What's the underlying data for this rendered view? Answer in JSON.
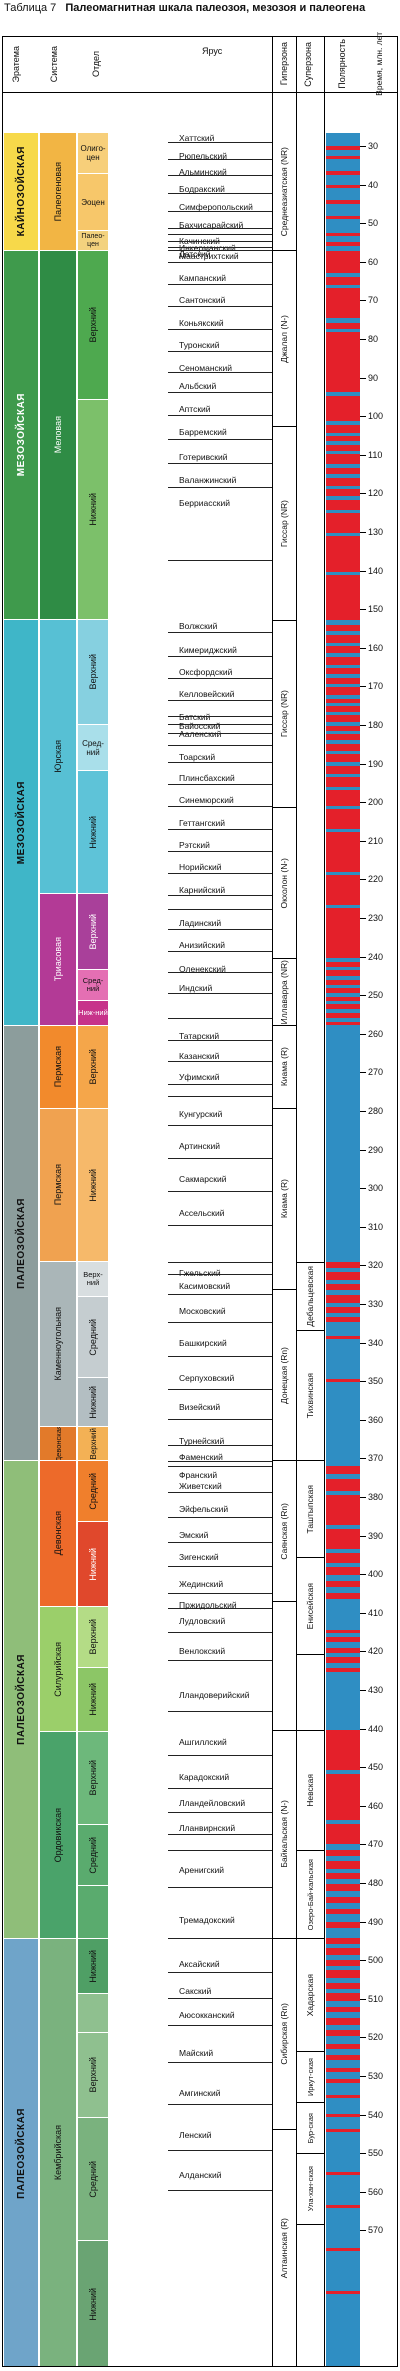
{
  "table": {
    "number": "Таблица 7",
    "title": "Палеомагнитная шкала палеозоя, мезозоя и палеогена"
  },
  "headers": {
    "eratema": "Эратема",
    "sistema": "Система",
    "otdel": "Отдел",
    "yarus": "Ярус",
    "giperzona": "Гиперзона",
    "superzona": "Суперзона",
    "polarnost": "Полярность",
    "vremya": "Время, млн. лет"
  },
  "colors": {
    "kainozoi": "#f7d94a",
    "paleogen": "#f2b544",
    "mel": "#3f9a4c",
    "mel_upper": "#4ea94f",
    "mel_lower": "#7cc06a",
    "jura": "#3fb6c8",
    "jura_upper": "#86d0e0",
    "jura_mid": "#a9dfea",
    "jura_lower": "#5ec3d8",
    "trias": "#8b2f8e",
    "trias_upper": "#a9409a",
    "trias_mid": "#e46fb3",
    "trias_lower": "#c7338a",
    "perm": "#f28a2c",
    "karbon": "#8c9d9c",
    "karbon_upper": "#d8dee0",
    "karbon_mid": "#c5cdd0",
    "karbon_lower": "#b3bec2",
    "devon": "#e27a2a",
    "devon_upper": "#f3b155",
    "devon_mid": "#f07f2c",
    "devon_lower": "#e0482c",
    "silur": "#9bcf6a",
    "ordovik": "#4aa36a",
    "kembrii": "#7ab27e",
    "paleozoi": "#6fa4c9",
    "polarity_normal": "#e4202a",
    "polarity_reverse": "#2f8ec3"
  },
  "eras": [
    {
      "label": "КАЙНОЗОЙСКАЯ"
    },
    {
      "label": "МЕЗОЗОЙСКАЯ"
    },
    {
      "label": "МЕЗОЗОЙСКАЯ"
    },
    {
      "label": "ПАЛЕОЗОЙСКАЯ"
    },
    {
      "label": "ПАЛЕОЗОЙСКАЯ"
    },
    {
      "label": "ПАЛЕОЗОЙСКАЯ"
    }
  ],
  "systems": [
    {
      "label": "Палеогеновая"
    },
    {
      "label": "Меловая"
    },
    {
      "label": "Юрская"
    },
    {
      "label": "Триасовая"
    },
    {
      "label": "Пермская"
    },
    {
      "label": "Пермская"
    },
    {
      "label": "Каменноугольная"
    },
    {
      "label": "Девонская"
    },
    {
      "label": "Девонская"
    },
    {
      "label": "Силурийская"
    },
    {
      "label": "Ордовикская"
    },
    {
      "label": "Кембрийская"
    }
  ],
  "series": [
    {
      "label": "Олиго-цен"
    },
    {
      "label": "Эоцен"
    },
    {
      "label": "Палео-цен"
    },
    {
      "label": "Верхний"
    },
    {
      "label": "Нижний"
    },
    {
      "label": "Верхний"
    },
    {
      "label": "Сред-ний"
    },
    {
      "label": "Нижний"
    },
    {
      "label": "Верхний"
    },
    {
      "label": "Сред-ний"
    },
    {
      "label": "Ниж-ний"
    },
    {
      "label": "Верхний"
    },
    {
      "label": "Нижний"
    },
    {
      "label": "Верх-ний"
    },
    {
      "label": "Средний"
    },
    {
      "label": "Нижний"
    },
    {
      "label": "Верхний"
    },
    {
      "label": "Средний"
    },
    {
      "label": "Нижний"
    },
    {
      "label": "Верхний"
    },
    {
      "label": "Нижний"
    },
    {
      "label": "Верхний"
    },
    {
      "label": "Средний"
    },
    {
      "label": "Нижний"
    },
    {
      "label": "Верхний"
    },
    {
      "label": "Средний"
    },
    {
      "label": "Нижний"
    }
  ],
  "stages": [
    "Хаттский",
    "Рюпельский",
    "Альминский",
    "Бодракский",
    "Симферопольский",
    "Бахчисарайский",
    "Качинский",
    "Инкерманский",
    "Датский",
    "Маастрихтский",
    "Кампанский",
    "Сантонский",
    "Коньякский",
    "Туронский",
    "Сеноманский",
    "Альбский",
    "Аптский",
    "Барремский",
    "Готеривский",
    "Валанжинский",
    "Берриасский",
    "Волжский",
    "Кимериджский",
    "Оксфордский",
    "Келловейский",
    "Батский",
    "Байосский",
    "Ааленский",
    "Тоарский",
    "Плинсбахский",
    "Синемюрский",
    "Геттангский",
    "Рэтский",
    "Норийский",
    "Карнийский",
    "Ладинский",
    "Анизийский",
    "Оленекский",
    "Индский",
    "Татарский",
    "Казанский",
    "Уфимский",
    "Кунгурский",
    "Артинский",
    "Сакмарский",
    "Ассельский",
    "Гжельский",
    "Касимовский",
    "Московский",
    "Башкирский",
    "Серпуховский",
    "Визейский",
    "Турнейский",
    "Фаменский",
    "Франский",
    "Живетский",
    "Эйфельский",
    "Эмский",
    "Зигенский",
    "Жединский",
    "Пржидольский",
    "Лудловский",
    "Венлокский",
    "Лландоверийский",
    "Ашгиллский",
    "Карадокский",
    "Лландейловский",
    "Лланвирнский",
    "Аренигский",
    "Тремадокский",
    "Аксайский",
    "Сакский",
    "Аюсокканский",
    "Майский",
    "Амгинский",
    "Ленский",
    "Алданский"
  ],
  "hyperzones": [
    {
      "label": "Среднеазиатская (NR)"
    },
    {
      "label": "Джалал (N-)"
    },
    {
      "label": "Гиссар (NR)"
    },
    {
      "label": "Гиссар (NR)"
    },
    {
      "label": "Окхолон (N-)"
    },
    {
      "label": "Иллаварра (NR)"
    },
    {
      "label": "Киама (R)"
    },
    {
      "label": "Киама (R)"
    },
    {
      "label": "Донецкая (Rn)"
    },
    {
      "label": "Саянская (Rn)"
    },
    {
      "label": "Байкальская (N-)"
    },
    {
      "label": "Сибирская (Rn)"
    },
    {
      "label": "Алтаинская (R)"
    }
  ],
  "superzones": [
    {
      "label": "Дебальцевская"
    },
    {
      "label": "Тихвинская"
    },
    {
      "label": "Таштыпская"
    },
    {
      "label": "Енисейская"
    },
    {
      "label": "Невская"
    },
    {
      "label": "Озеро-Бай-кальская"
    },
    {
      "label": "Хадарская"
    },
    {
      "label": "Иркут-ская"
    },
    {
      "label": "Бур-ская"
    },
    {
      "label": "Ула-хан-ская"
    }
  ],
  "time_scale": {
    "labels": [
      "30",
      "40",
      "50",
      "60",
      "70",
      "80",
      "90",
      "100",
      "110",
      "120",
      "130",
      "140",
      "150",
      "160",
      "170",
      "180",
      "190",
      "200",
      "210",
      "220",
      "230",
      "240",
      "250",
      "260",
      "270",
      "280",
      "290",
      "300",
      "310",
      "320",
      "330",
      "340",
      "350",
      "360",
      "370",
      "380",
      "390",
      "400",
      "410",
      "420",
      "430",
      "440",
      "450",
      "460",
      "470",
      "480",
      "490",
      "500",
      "510",
      "520",
      "530",
      "540",
      "550",
      "560",
      "570"
    ]
  }
}
